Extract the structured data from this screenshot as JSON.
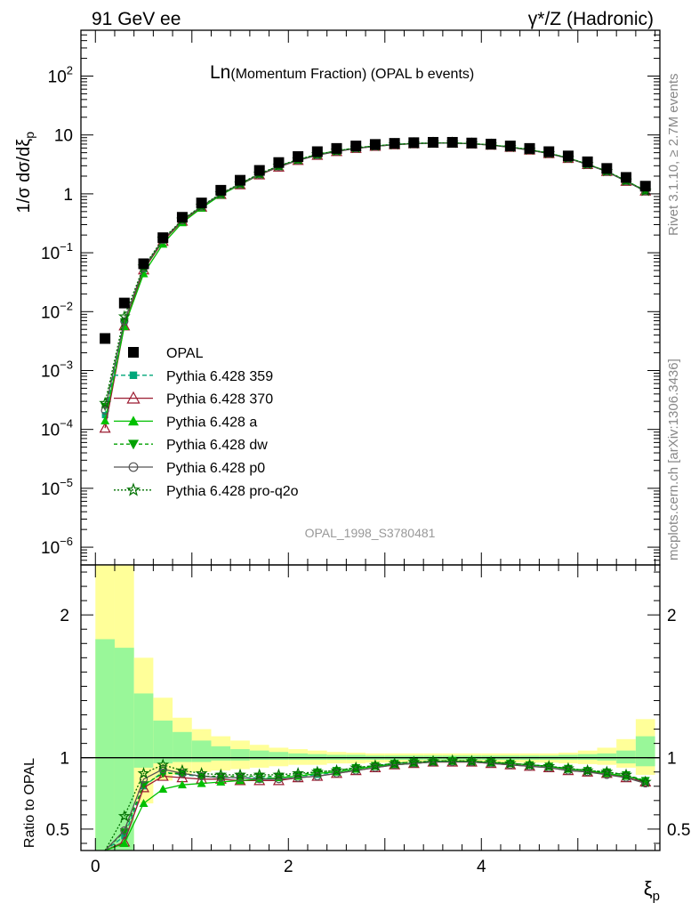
{
  "header": {
    "left_label": "91 GeV ee",
    "right_label": "γ*/Z (Hadronic)",
    "side_label_top": "Rivet 3.1.10, ≥ 2.7M events",
    "side_label_bottom": "mcplots.cern.ch [arXiv:1306.3436]"
  },
  "chart_data": {
    "type": "line",
    "title_main": "Ln",
    "title_detail": "(Momentum Fraction) (OPAL b events)",
    "analysis_label": "OPAL_1998_S3780481",
    "ylabel_main": "1/σ dσ/dξ",
    "ylabel_main_sub": "p",
    "ylabel_ratio": "Ratio to OPAL",
    "xlabel": "ξ",
    "xlabel_sub": "p",
    "x_ticks": [
      "0",
      "2",
      "4"
    ],
    "x_tick_values": [
      0,
      2,
      4
    ],
    "xlim": [
      -0.15,
      5.85
    ],
    "main_yscale": "log",
    "main_ylim": [
      5e-07,
      600
    ],
    "main_y_ticks": [
      {
        "mantissa": "10",
        "exp": "2",
        "value": 100
      },
      {
        "mantissa": "10",
        "exp": "",
        "value": 10
      },
      {
        "mantissa": "1",
        "exp": "",
        "value": 1
      },
      {
        "mantissa": "10",
        "exp": "−1",
        "value": 0.1
      },
      {
        "mantissa": "10",
        "exp": "−2",
        "value": 0.01
      },
      {
        "mantissa": "10",
        "exp": "−3",
        "value": 0.001
      },
      {
        "mantissa": "10",
        "exp": "−4",
        "value": 0.0001
      },
      {
        "mantissa": "10",
        "exp": "−5",
        "value": 1e-05
      },
      {
        "mantissa": "10",
        "exp": "−6",
        "value": 1e-06
      }
    ],
    "ratio_ylim": [
      0.35,
      2.35
    ],
    "ratio_y_ticks": [
      "2",
      "1",
      "0.5"
    ],
    "ratio_y_tick_values": [
      2,
      1,
      0.5
    ],
    "x": [
      0.1,
      0.3,
      0.5,
      0.7,
      0.9,
      1.1,
      1.3,
      1.5,
      1.7,
      1.9,
      2.1,
      2.3,
      2.5,
      2.7,
      2.9,
      3.1,
      3.3,
      3.5,
      3.7,
      3.9,
      4.1,
      4.3,
      4.5,
      4.7,
      4.9,
      5.1,
      5.3,
      5.5,
      5.7
    ],
    "bin_edges": [
      0.0,
      0.2,
      0.4,
      0.6,
      0.8,
      1.0,
      1.2,
      1.4,
      1.6,
      1.8,
      2.0,
      2.2,
      2.4,
      2.6,
      2.8,
      3.0,
      3.2,
      3.4,
      3.6,
      3.8,
      4.0,
      4.2,
      4.4,
      4.6,
      4.8,
      5.0,
      5.2,
      5.4,
      5.6,
      5.8
    ],
    "data": {
      "name": "OPAL",
      "values": [
        0.0035,
        0.014,
        0.065,
        0.18,
        0.4,
        0.7,
        1.15,
        1.7,
        2.5,
        3.4,
        4.3,
        5.2,
        5.9,
        6.5,
        6.9,
        7.2,
        7.4,
        7.5,
        7.5,
        7.3,
        7.0,
        6.5,
        5.9,
        5.2,
        4.4,
        3.5,
        2.7,
        1.9,
        1.35
      ]
    },
    "bands": {
      "inner_color": "#99f799",
      "outer_color": "#ffff99",
      "inner_lower": [
        0.35,
        0.35,
        0.93,
        0.96,
        0.97,
        0.97,
        0.98,
        0.98,
        0.985,
        0.985,
        0.985,
        0.985,
        0.985,
        0.985,
        0.985,
        0.985,
        0.985,
        0.985,
        0.985,
        0.985,
        0.985,
        0.985,
        0.985,
        0.985,
        0.985,
        0.985,
        0.98,
        0.96,
        0.94
      ],
      "inner_upper": [
        1.83,
        1.77,
        1.45,
        1.26,
        1.18,
        1.12,
        1.08,
        1.06,
        1.05,
        1.04,
        1.03,
        1.025,
        1.02,
        1.02,
        1.015,
        1.015,
        1.015,
        1.015,
        1.015,
        1.015,
        1.015,
        1.015,
        1.015,
        1.015,
        1.02,
        1.025,
        1.03,
        1.05,
        1.15
      ],
      "outer_lower": [
        0.35,
        0.35,
        0.68,
        0.84,
        0.88,
        0.9,
        0.91,
        0.92,
        0.93,
        0.94,
        0.95,
        0.95,
        0.96,
        0.96,
        0.965,
        0.965,
        0.965,
        0.965,
        0.965,
        0.965,
        0.965,
        0.965,
        0.965,
        0.965,
        0.96,
        0.955,
        0.95,
        0.93,
        0.88
      ],
      "outer_upper": [
        2.35,
        2.35,
        1.7,
        1.42,
        1.28,
        1.2,
        1.15,
        1.12,
        1.09,
        1.07,
        1.06,
        1.05,
        1.04,
        1.035,
        1.03,
        1.03,
        1.03,
        1.03,
        1.03,
        1.03,
        1.03,
        1.03,
        1.03,
        1.03,
        1.035,
        1.05,
        1.07,
        1.13,
        1.27
      ]
    },
    "series": [
      {
        "name": "Pythia 6.428 359",
        "color": "#00a77a",
        "dash": "5,3",
        "marker": "square",
        "ratio": [
          0.05,
          0.45,
          0.8,
          0.9,
          0.88,
          0.87,
          0.86,
          0.86,
          0.86,
          0.86,
          0.87,
          0.88,
          0.9,
          0.92,
          0.94,
          0.96,
          0.97,
          0.975,
          0.975,
          0.975,
          0.965,
          0.96,
          0.95,
          0.94,
          0.92,
          0.91,
          0.89,
          0.87,
          0.83
        ]
      },
      {
        "name": "Pythia 6.428 370",
        "color": "#9b1b30",
        "dash": "",
        "marker": "triangle-open",
        "ratio": [
          0.03,
          0.41,
          0.79,
          0.87,
          0.86,
          0.85,
          0.85,
          0.84,
          0.84,
          0.84,
          0.86,
          0.87,
          0.89,
          0.91,
          0.93,
          0.95,
          0.96,
          0.97,
          0.97,
          0.97,
          0.96,
          0.95,
          0.94,
          0.93,
          0.91,
          0.9,
          0.89,
          0.86,
          0.83
        ]
      },
      {
        "name": "Pythia 6.428 a",
        "color": "#00c000",
        "dash": "",
        "marker": "triangle",
        "ratio": [
          0.04,
          0.4,
          0.68,
          0.78,
          0.81,
          0.82,
          0.83,
          0.84,
          0.85,
          0.86,
          0.87,
          0.89,
          0.9,
          0.92,
          0.94,
          0.95,
          0.96,
          0.97,
          0.975,
          0.975,
          0.965,
          0.96,
          0.95,
          0.94,
          0.92,
          0.91,
          0.89,
          0.87,
          0.84
        ]
      },
      {
        "name": "Pythia 6.428 dw",
        "color": "#00a000",
        "dash": "4,3",
        "marker": "triangle-down",
        "ratio": [
          0.07,
          0.48,
          0.81,
          0.89,
          0.89,
          0.87,
          0.87,
          0.87,
          0.87,
          0.87,
          0.88,
          0.9,
          0.91,
          0.93,
          0.945,
          0.96,
          0.97,
          0.975,
          0.98,
          0.975,
          0.97,
          0.96,
          0.95,
          0.94,
          0.925,
          0.91,
          0.9,
          0.88,
          0.84
        ]
      },
      {
        "name": "Pythia 6.428 p0",
        "color": "#555555",
        "dash": "",
        "marker": "circle-open",
        "ratio": [
          0.06,
          0.49,
          0.85,
          0.92,
          0.89,
          0.87,
          0.86,
          0.86,
          0.85,
          0.85,
          0.86,
          0.87,
          0.89,
          0.91,
          0.93,
          0.95,
          0.96,
          0.97,
          0.97,
          0.97,
          0.96,
          0.95,
          0.94,
          0.93,
          0.91,
          0.9,
          0.88,
          0.86,
          0.82
        ]
      },
      {
        "name": "Pythia 6.428 pro-q2o",
        "color": "#007000",
        "dash": "2,2",
        "marker": "star-open",
        "ratio": [
          0.08,
          0.59,
          0.89,
          0.95,
          0.91,
          0.89,
          0.88,
          0.88,
          0.88,
          0.88,
          0.89,
          0.9,
          0.91,
          0.93,
          0.945,
          0.96,
          0.97,
          0.975,
          0.98,
          0.975,
          0.97,
          0.96,
          0.95,
          0.94,
          0.925,
          0.91,
          0.9,
          0.88,
          0.83
        ]
      }
    ]
  }
}
